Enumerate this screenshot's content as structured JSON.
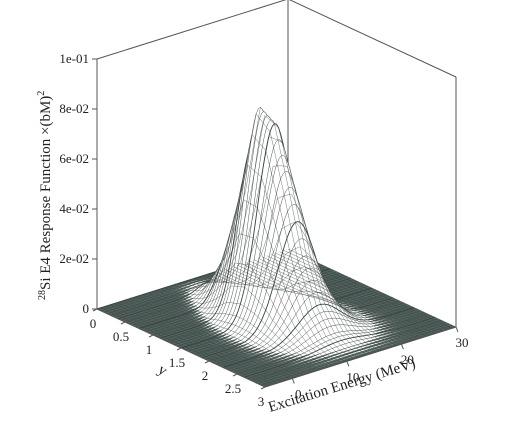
{
  "chart_data": {
    "type": "surface",
    "title": "",
    "zlabel_prefix": "28",
    "zlabel_main": "Si E4 Response Function ×(bM)",
    "zlabel_exp": "2",
    "xlabel": "Excitation Energy (MeV)",
    "ylabel": "y",
    "x_ticks": [
      "0",
      "10",
      "20",
      "30"
    ],
    "y_ticks": [
      "0",
      "0.5",
      "1",
      "1.5",
      "2",
      "2.5",
      "3"
    ],
    "z_ticks": [
      "0",
      "2e-02",
      "4e-02",
      "6e-02",
      "8e-02",
      "1e-01"
    ],
    "xlim": [
      -5,
      30
    ],
    "ylim": [
      0,
      3
    ],
    "zlim": [
      0,
      0.1
    ],
    "peak": {
      "x": 12,
      "y": 1.25,
      "z": 0.082
    },
    "ridge_profile": {
      "y": [
        0,
        0.25,
        0.5,
        0.75,
        1.0,
        1.25,
        1.5,
        1.75,
        2.0,
        2.25,
        2.5,
        2.75,
        3.0
      ],
      "z": [
        0.0,
        0.001,
        0.006,
        0.02,
        0.048,
        0.082,
        0.078,
        0.055,
        0.03,
        0.013,
        0.004,
        0.001,
        0.0
      ]
    },
    "colors": {
      "surface": "#ffffff",
      "floor": "#4a5a56",
      "mesh": "#3a4340",
      "axis": "#555555"
    }
  }
}
